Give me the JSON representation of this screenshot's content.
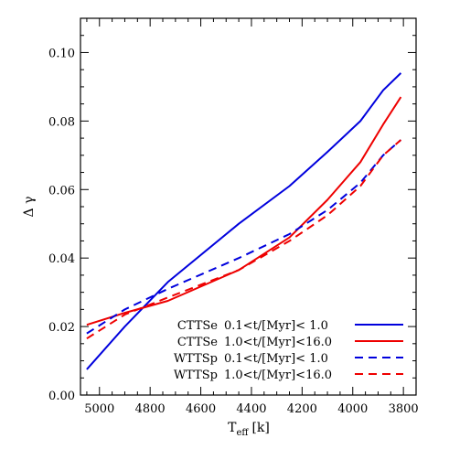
{
  "chart_data": {
    "type": "line",
    "xlabel": "T",
    "xlabel_sub": "eff",
    "xlabel_unit": "[k]",
    "ylabel": "Δ γ",
    "xlim": [
      5075,
      3750
    ],
    "ylim": [
      0.0,
      0.11
    ],
    "x_ticks": [
      5000,
      4800,
      4600,
      4400,
      4200,
      4000,
      3800
    ],
    "y_ticks": [
      0.0,
      0.02,
      0.04,
      0.06,
      0.08,
      0.1
    ],
    "x_tick_labels": [
      "5000",
      "4800",
      "4600",
      "4400",
      "4200",
      "4000",
      "3800"
    ],
    "y_tick_labels": [
      "0.00",
      "0.02",
      "0.04",
      "0.06",
      "0.08",
      "0.10"
    ],
    "grid": false,
    "legend_position": "bottom-right",
    "series": [
      {
        "name": "CTTSe",
        "range_label": "0.1<t/[Myr]< 1.0",
        "color": "#0000dd",
        "dash": "solid",
        "x": [
          5050,
          4900,
          4730,
          4450,
          4250,
          4100,
          3970,
          3880,
          3810
        ],
        "y": [
          0.0075,
          0.02,
          0.033,
          0.05,
          0.061,
          0.071,
          0.08,
          0.089,
          0.094
        ]
      },
      {
        "name": "CTTSe",
        "range_label": "1.0<t/[Myr]<16.0",
        "color": "#ee0000",
        "dash": "solid",
        "x": [
          5050,
          4900,
          4730,
          4450,
          4250,
          4100,
          3970,
          3880,
          3810
        ],
        "y": [
          0.0205,
          0.024,
          0.0275,
          0.0365,
          0.046,
          0.057,
          0.068,
          0.079,
          0.087
        ]
      },
      {
        "name": "WTTSp",
        "range_label": "0.1<t/[Myr]< 1.0",
        "color": "#0000dd",
        "dash": "dashed",
        "x": [
          5050,
          4900,
          4730,
          4450,
          4250,
          4100,
          3970,
          3880,
          3810
        ],
        "y": [
          0.018,
          0.025,
          0.031,
          0.04,
          0.047,
          0.054,
          0.062,
          0.07,
          0.0745
        ]
      },
      {
        "name": "WTTSp",
        "range_label": "1.0<t/[Myr]<16.0",
        "color": "#ee0000",
        "dash": "dashed",
        "x": [
          5050,
          4900,
          4730,
          4450,
          4250,
          4100,
          3970,
          3880,
          3810
        ],
        "y": [
          0.0165,
          0.0235,
          0.0285,
          0.0365,
          0.045,
          0.0525,
          0.061,
          0.07,
          0.0745
        ]
      }
    ]
  }
}
